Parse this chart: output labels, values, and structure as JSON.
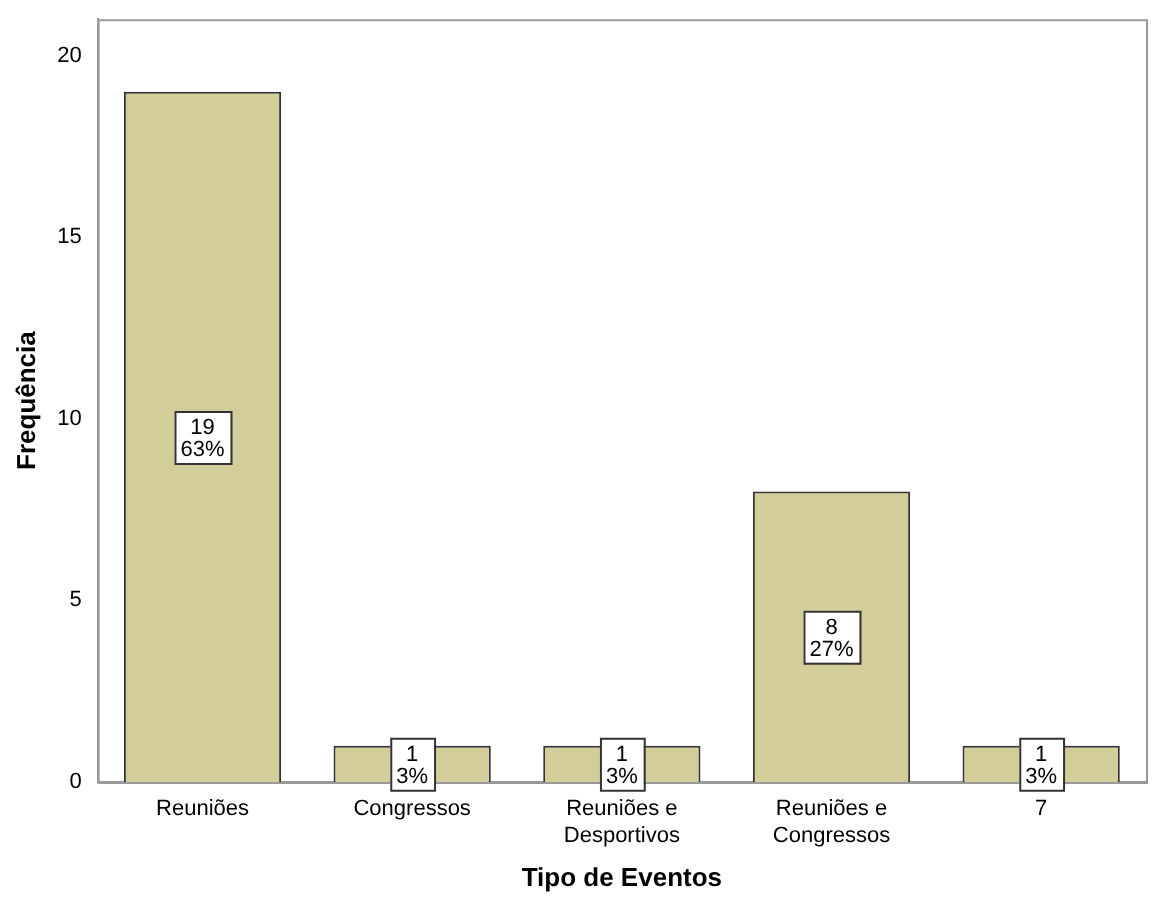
{
  "chart_data": {
    "type": "bar",
    "xlabel": "Tipo de Eventos",
    "ylabel": "Frequência",
    "categories": [
      "Reuniões",
      "Congressos",
      "Reuniões e\nDesportivos",
      "Reuniões e\nCongressos",
      "7"
    ],
    "values": [
      19,
      1,
      1,
      8,
      1
    ],
    "value_labels": [
      "19\n63%",
      "1\n3%",
      "1\n3%",
      "8\n27%",
      "1\n3%"
    ],
    "color": "#d3ce99",
    "ylim": [
      0,
      21
    ],
    "yticks": [
      0,
      5,
      10,
      15,
      20
    ],
    "grid": false,
    "legend": false
  }
}
